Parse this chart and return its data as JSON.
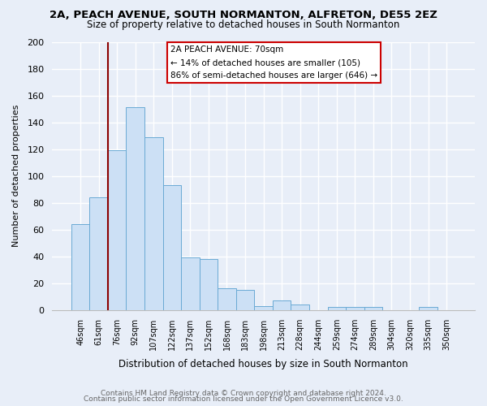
{
  "title": "2A, PEACH AVENUE, SOUTH NORMANTON, ALFRETON, DE55 2EZ",
  "subtitle": "Size of property relative to detached houses in South Normanton",
  "xlabel": "Distribution of detached houses by size in South Normanton",
  "ylabel": "Number of detached properties",
  "bar_color": "#cce0f5",
  "bar_edge_color": "#6aaad4",
  "fig_bg_color": "#e8eef8",
  "ax_bg_color": "#e8eef8",
  "grid_color": "#ffffff",
  "categories": [
    "46sqm",
    "61sqm",
    "76sqm",
    "92sqm",
    "107sqm",
    "122sqm",
    "137sqm",
    "152sqm",
    "168sqm",
    "183sqm",
    "198sqm",
    "213sqm",
    "228sqm",
    "244sqm",
    "259sqm",
    "274sqm",
    "289sqm",
    "304sqm",
    "320sqm",
    "335sqm",
    "350sqm"
  ],
  "values": [
    64,
    84,
    119,
    151,
    129,
    93,
    39,
    38,
    16,
    15,
    3,
    7,
    4,
    0,
    2,
    2,
    2,
    0,
    0,
    2,
    0
  ],
  "ylim": [
    0,
    200
  ],
  "yticks": [
    0,
    20,
    40,
    60,
    80,
    100,
    120,
    140,
    160,
    180,
    200
  ],
  "property_line_color": "#8b0000",
  "annotation_line1": "2A PEACH AVENUE: 70sqm",
  "annotation_line2": "← 14% of detached houses are smaller (105)",
  "annotation_line3": "86% of semi-detached houses are larger (646) →",
  "annotation_box_edge_color": "#cc0000",
  "footer1": "Contains HM Land Registry data © Crown copyright and database right 2024.",
  "footer2": "Contains public sector information licensed under the Open Government Licence v3.0."
}
